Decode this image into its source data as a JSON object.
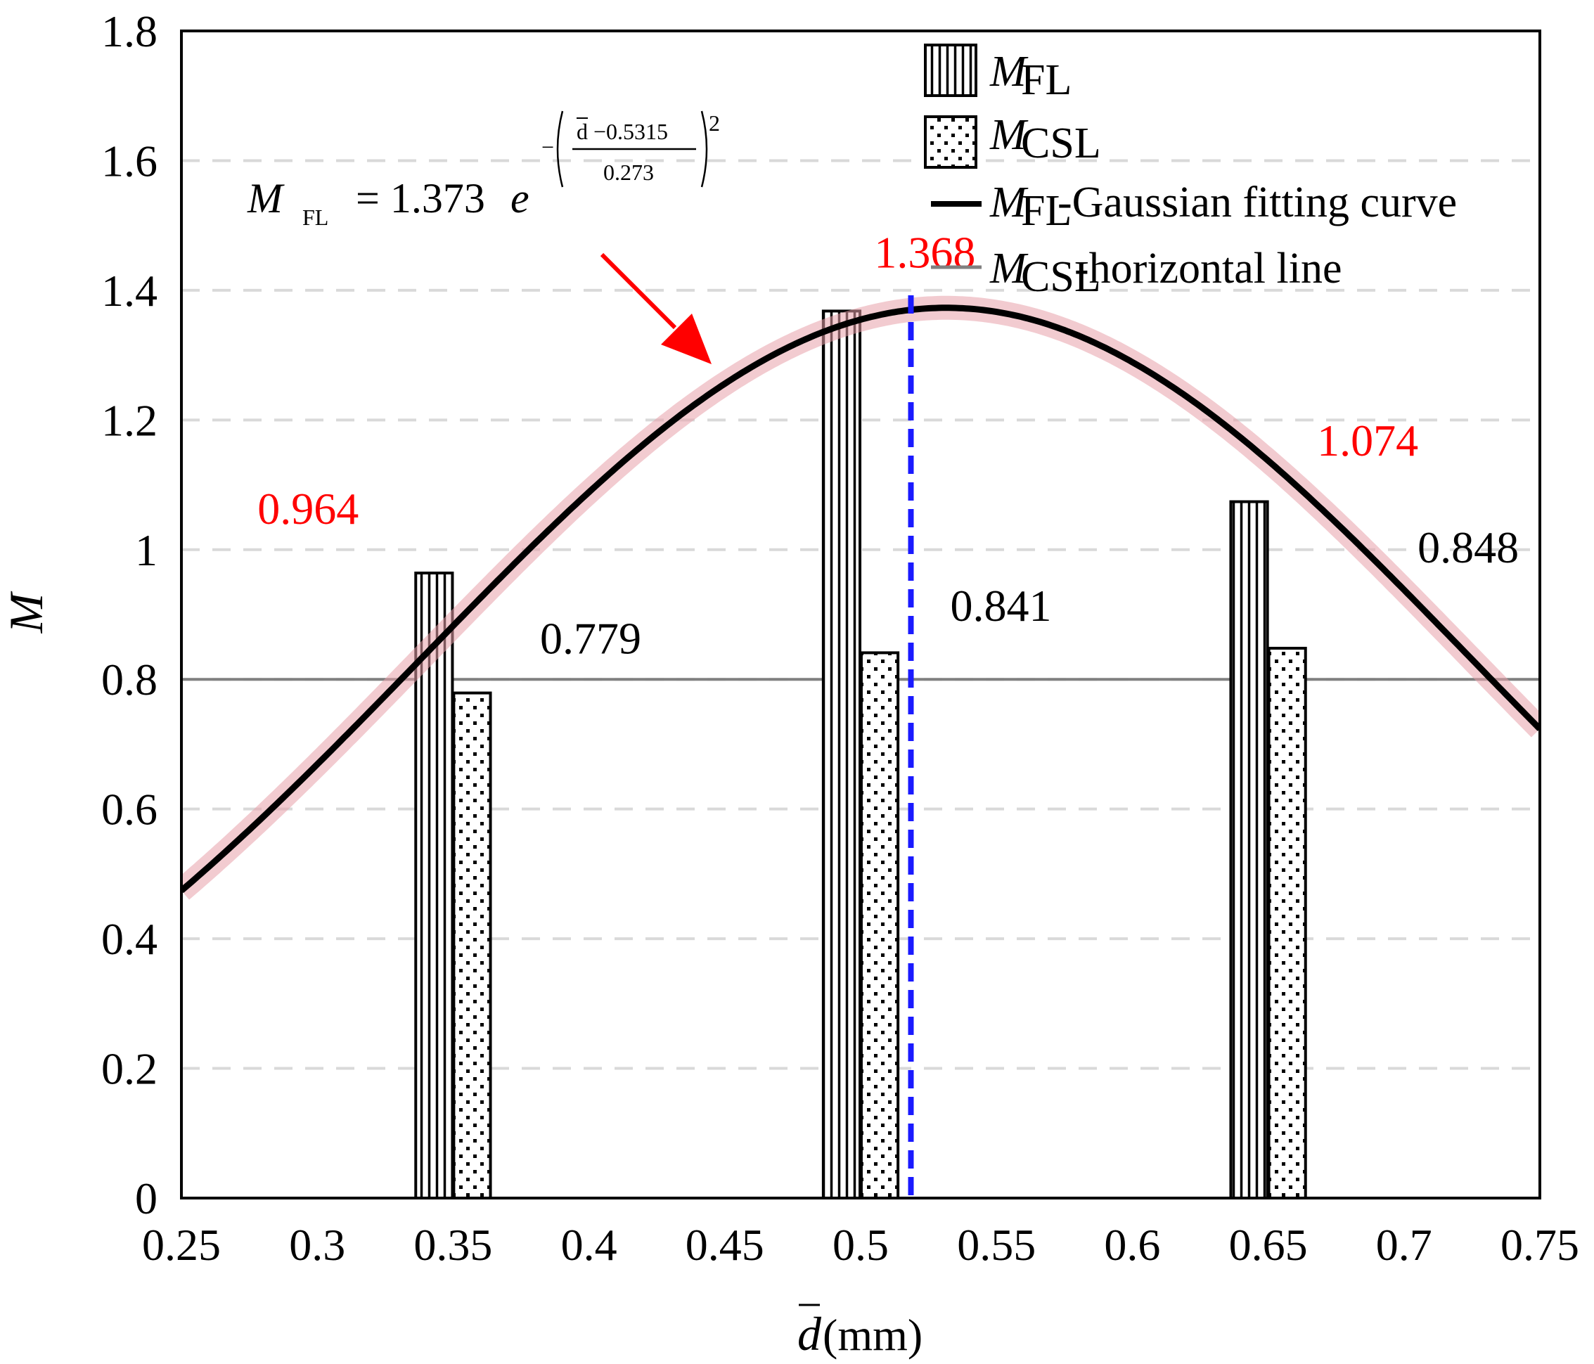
{
  "chart_data": {
    "type": "bar",
    "title": "",
    "xlabel": "d",
    "xlabel_unit": "(mm)",
    "ylabel": "M",
    "xlim": [
      0.25,
      0.75
    ],
    "ylim": [
      0,
      1.8
    ],
    "x_ticks": [
      "0.25",
      "0.3",
      "0.35",
      "0.4",
      "0.45",
      "0.5",
      "0.55",
      "0.6",
      "0.65",
      "0.7",
      "0.75"
    ],
    "y_ticks": [
      "0",
      "0.2",
      "0.4",
      "0.6",
      "0.8",
      "1",
      "1.2",
      "1.4",
      "1.6",
      "1.8"
    ],
    "grid": "horizontal dashed",
    "series": [
      {
        "name": "M_FL",
        "kind": "bar",
        "pattern": "vertical-lines",
        "x": [
          0.343,
          0.493,
          0.643
        ],
        "values": [
          0.964,
          1.368,
          1.074
        ]
      },
      {
        "name": "M_CSL",
        "kind": "bar",
        "pattern": "dots",
        "x": [
          0.357,
          0.507,
          0.657
        ],
        "values": [
          0.779,
          0.841,
          0.848
        ]
      }
    ],
    "fit_curve": {
      "name": "M_FL-Gaussian fitting curve",
      "a": 1.373,
      "mu": 0.5315,
      "sigma": 0.273
    },
    "horizontal_line": {
      "name": "M_CSL-horizontal line",
      "y": 0.8
    },
    "peak_marker_x": 0.5185,
    "data_labels": [
      {
        "text": "0.964",
        "x": 0.278,
        "y": 1.04,
        "color": "#ff0000"
      },
      {
        "text": "1.368",
        "x": 0.505,
        "y": 1.435,
        "color": "#ff0000"
      },
      {
        "text": "1.074",
        "x": 0.668,
        "y": 1.145,
        "color": "#ff0000"
      },
      {
        "text": "0.779",
        "x": 0.382,
        "y": 0.84,
        "color": "#000000"
      },
      {
        "text": "0.841",
        "x": 0.533,
        "y": 0.89,
        "color": "#000000"
      },
      {
        "text": "0.848",
        "x": 0.705,
        "y": 0.98,
        "color": "#000000"
      }
    ],
    "equation": {
      "lhs": "M",
      "lhs_sub": "FL",
      "rhs_coef": "= 1.373",
      "base": "e",
      "exp_num": "d −0.5315",
      "exp_den": "0.273",
      "exp_power": "2",
      "exp_sign": "−"
    },
    "legend": [
      {
        "main": "M",
        "sub": "FL",
        "suffix": ""
      },
      {
        "main": "M",
        "sub": "CSL",
        "suffix": ""
      },
      {
        "main": "M",
        "sub": "FL",
        "suffix": "-Gaussian fitting curve"
      },
      {
        "main": "M",
        "sub": "CSL",
        "suffix": "-horizontal line"
      }
    ],
    "legend_position": "top-right",
    "colors": {
      "curve": "#000000",
      "curve_band": "#e8a0aa",
      "hline": "#808080",
      "peak_marker": "#1a1aff",
      "arrow": "#ff0000",
      "grid": "#d9d9d9"
    }
  }
}
